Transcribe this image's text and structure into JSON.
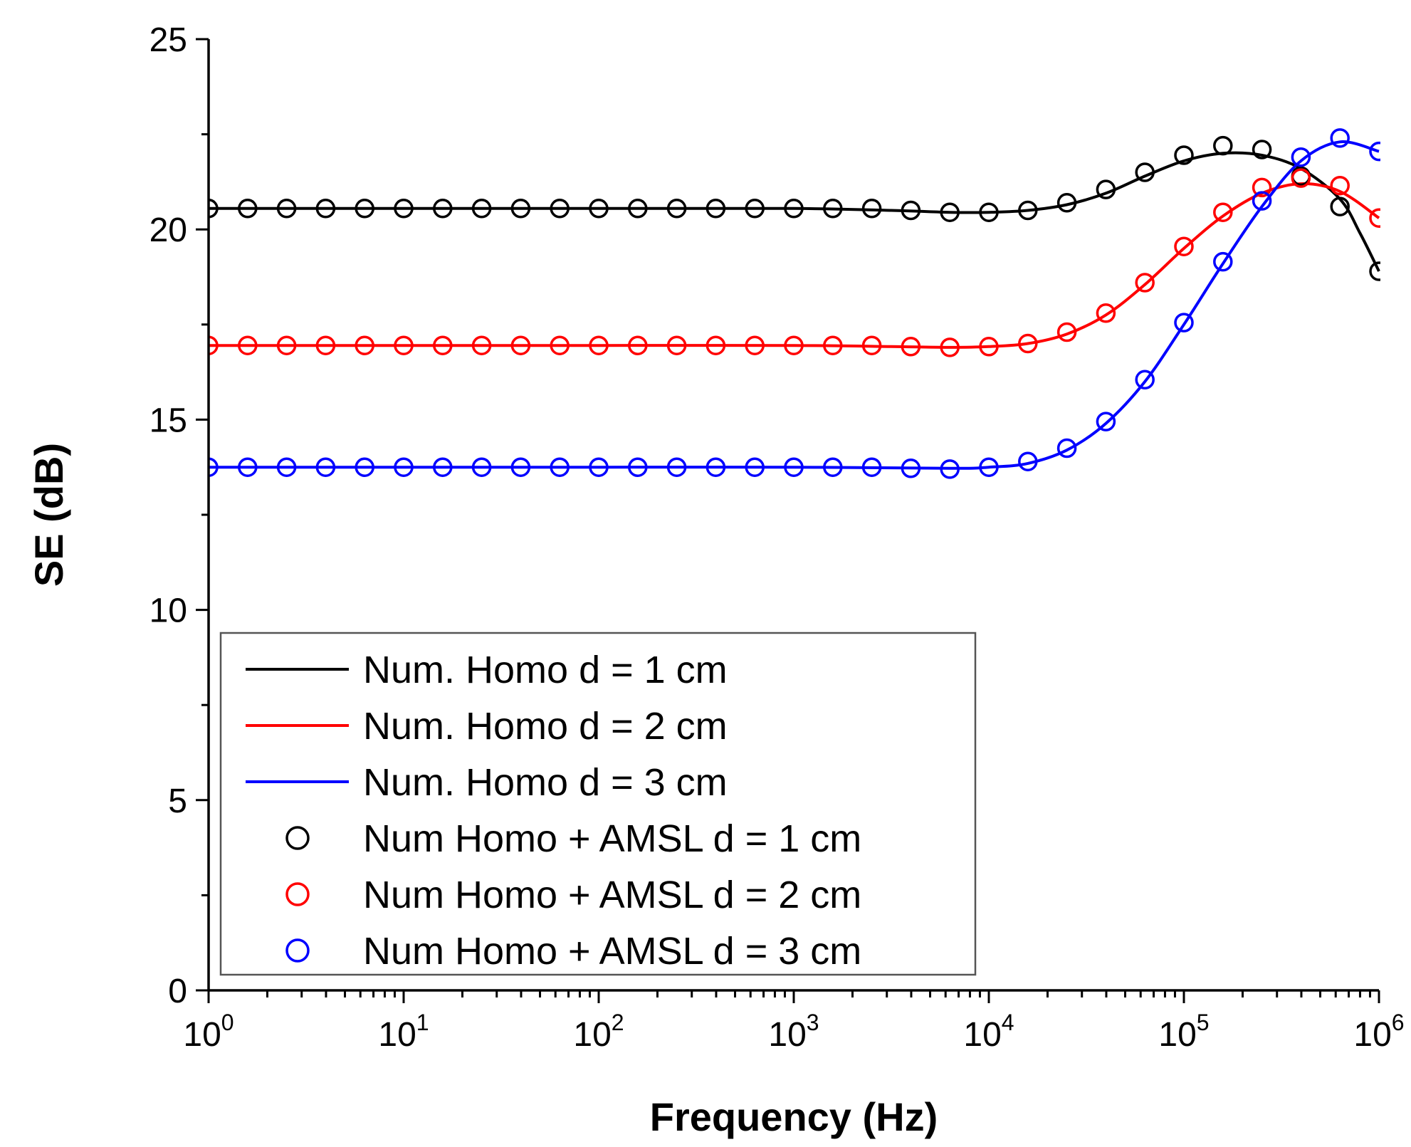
{
  "chart_data": {
    "type": "line",
    "xlabel": "Frequency (Hz)",
    "ylabel": "SE (dB)",
    "x_scale": "log",
    "xlim": [
      1,
      1000000
    ],
    "ylim": [
      0,
      25
    ],
    "y_ticks": [
      0,
      5,
      10,
      15,
      20,
      25
    ],
    "x_ticks": [
      {
        "value": 1,
        "base": "10",
        "exp": "0"
      },
      {
        "value": 10,
        "base": "10",
        "exp": "1"
      },
      {
        "value": 100,
        "base": "10",
        "exp": "2"
      },
      {
        "value": 1000,
        "base": "10",
        "exp": "3"
      },
      {
        "value": 10000,
        "base": "10",
        "exp": "4"
      },
      {
        "value": 100000,
        "base": "10",
        "exp": "5"
      },
      {
        "value": 1000000,
        "base": "10",
        "exp": "6"
      }
    ],
    "grid": false,
    "legend_position": "bottom-left",
    "lines": [
      {
        "name": "Num. Homo d = 1 cm",
        "color": "#000000",
        "points": [
          [
            1,
            20.55
          ],
          [
            10,
            20.55
          ],
          [
            100,
            20.55
          ],
          [
            1000,
            20.55
          ],
          [
            3162,
            20.5
          ],
          [
            6310,
            20.45
          ],
          [
            10000,
            20.45
          ],
          [
            15850,
            20.5
          ],
          [
            25120,
            20.65
          ],
          [
            39810,
            20.95
          ],
          [
            63100,
            21.4
          ],
          [
            100000,
            21.8
          ],
          [
            158500,
            22.0
          ],
          [
            251200,
            21.95
          ],
          [
            398100,
            21.6
          ],
          [
            630000,
            20.8
          ],
          [
            800000,
            19.9
          ],
          [
            1000000,
            18.9
          ]
        ]
      },
      {
        "name": "Num. Homo d = 2 cm",
        "color": "#ff0000",
        "points": [
          [
            1,
            16.95
          ],
          [
            10,
            16.95
          ],
          [
            100,
            16.95
          ],
          [
            1000,
            16.95
          ],
          [
            3162,
            16.92
          ],
          [
            6310,
            16.9
          ],
          [
            10000,
            16.92
          ],
          [
            15850,
            17.0
          ],
          [
            25120,
            17.25
          ],
          [
            39810,
            17.75
          ],
          [
            63100,
            18.55
          ],
          [
            100000,
            19.5
          ],
          [
            158500,
            20.35
          ],
          [
            251200,
            20.95
          ],
          [
            398100,
            21.2
          ],
          [
            630000,
            21.0
          ],
          [
            1000000,
            20.3
          ]
        ]
      },
      {
        "name": "Num. Homo d = 3 cm",
        "color": "#0000ff",
        "points": [
          [
            1,
            13.75
          ],
          [
            10,
            13.75
          ],
          [
            100,
            13.75
          ],
          [
            1000,
            13.75
          ],
          [
            6310,
            13.72
          ],
          [
            10000,
            13.75
          ],
          [
            15850,
            13.85
          ],
          [
            25120,
            14.2
          ],
          [
            39810,
            14.9
          ],
          [
            63100,
            16.0
          ],
          [
            100000,
            17.5
          ],
          [
            158500,
            19.1
          ],
          [
            251200,
            20.6
          ],
          [
            398100,
            21.8
          ],
          [
            630000,
            22.3
          ],
          [
            1000000,
            22.05
          ]
        ]
      }
    ],
    "markers": [
      {
        "name": "Num Homo + AMSL d = 1 cm",
        "color": "#000000",
        "x": [
          1,
          1.585,
          2.512,
          3.981,
          6.31,
          10,
          15.85,
          25.12,
          39.81,
          63.1,
          100,
          158.5,
          251.2,
          398.1,
          631,
          1000,
          1585,
          2512,
          3981,
          6310,
          10000,
          15850,
          25120,
          39810,
          63100,
          100000,
          158500,
          251200,
          398100,
          631000,
          1000000
        ],
        "y": [
          20.55,
          20.55,
          20.55,
          20.55,
          20.55,
          20.55,
          20.55,
          20.55,
          20.55,
          20.55,
          20.55,
          20.55,
          20.55,
          20.55,
          20.55,
          20.55,
          20.55,
          20.55,
          20.5,
          20.45,
          20.45,
          20.5,
          20.7,
          21.05,
          21.5,
          21.95,
          22.2,
          22.1,
          21.4,
          20.6,
          18.9
        ]
      },
      {
        "name": "Num Homo + AMSL d = 2 cm",
        "color": "#ff0000",
        "x": [
          1,
          1.585,
          2.512,
          3.981,
          6.31,
          10,
          15.85,
          25.12,
          39.81,
          63.1,
          100,
          158.5,
          251.2,
          398.1,
          631,
          1000,
          1585,
          2512,
          3981,
          6310,
          10000,
          15850,
          25120,
          39810,
          63100,
          100000,
          158500,
          251200,
          398100,
          631000,
          1000000
        ],
        "y": [
          16.95,
          16.95,
          16.95,
          16.95,
          16.95,
          16.95,
          16.95,
          16.95,
          16.95,
          16.95,
          16.95,
          16.95,
          16.95,
          16.95,
          16.95,
          16.95,
          16.95,
          16.95,
          16.92,
          16.9,
          16.92,
          17.0,
          17.3,
          17.8,
          18.6,
          19.55,
          20.45,
          21.1,
          21.35,
          21.15,
          20.3
        ]
      },
      {
        "name": "Num Homo + AMSL d = 3 cm",
        "color": "#0000ff",
        "x": [
          1,
          1.585,
          2.512,
          3.981,
          6.31,
          10,
          15.85,
          25.12,
          39.81,
          63.1,
          100,
          158.5,
          251.2,
          398.1,
          631,
          1000,
          1585,
          2512,
          3981,
          6310,
          10000,
          15850,
          25120,
          39810,
          63100,
          100000,
          158500,
          251200,
          398100,
          631000,
          1000000
        ],
        "y": [
          13.75,
          13.75,
          13.75,
          13.75,
          13.75,
          13.75,
          13.75,
          13.75,
          13.75,
          13.75,
          13.75,
          13.75,
          13.75,
          13.75,
          13.75,
          13.75,
          13.75,
          13.75,
          13.72,
          13.7,
          13.75,
          13.9,
          14.25,
          14.95,
          16.05,
          17.55,
          19.15,
          20.75,
          21.9,
          22.4,
          22.05
        ]
      }
    ]
  }
}
